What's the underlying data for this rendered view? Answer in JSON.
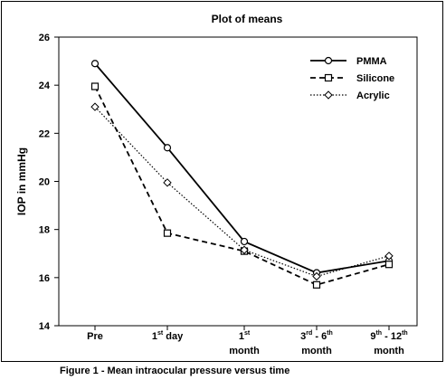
{
  "chart_data": {
    "type": "line",
    "title": "Plot of means",
    "ylabel": "IOP in mmHg",
    "xlabel": "",
    "ylim": [
      14,
      26
    ],
    "yticks": [
      14,
      16,
      18,
      20,
      22,
      24,
      26
    ],
    "grid": false,
    "legend_position": "top-right",
    "categories": [
      {
        "base": "Pre",
        "sup": "",
        "rest": "",
        "line2": ""
      },
      {
        "base": "1",
        "sup": "st",
        "rest": " day",
        "line2": ""
      },
      {
        "base": "1",
        "sup": "st",
        "rest": "",
        "line2": "month"
      },
      {
        "base": "3",
        "sup": "rd",
        "rest": " - 6",
        "sup2": "th",
        "line2": "month"
      },
      {
        "base": "9",
        "sup": "th",
        "rest": " - 12",
        "sup2": "th",
        "line2": "month"
      }
    ],
    "series": [
      {
        "name": "PMMA",
        "values": [
          24.9,
          21.4,
          17.5,
          16.2,
          16.7
        ],
        "marker": "circle",
        "dash": "solid"
      },
      {
        "name": "Silicone",
        "values": [
          23.95,
          17.85,
          17.1,
          15.7,
          16.55
        ],
        "marker": "square",
        "dash": "dashed"
      },
      {
        "name": "Acrylic",
        "values": [
          23.1,
          19.95,
          17.15,
          16.05,
          16.9
        ],
        "marker": "diamond",
        "dash": "dotted"
      }
    ]
  },
  "caption": "Figure 1 - Mean intraocular pressure versus time"
}
